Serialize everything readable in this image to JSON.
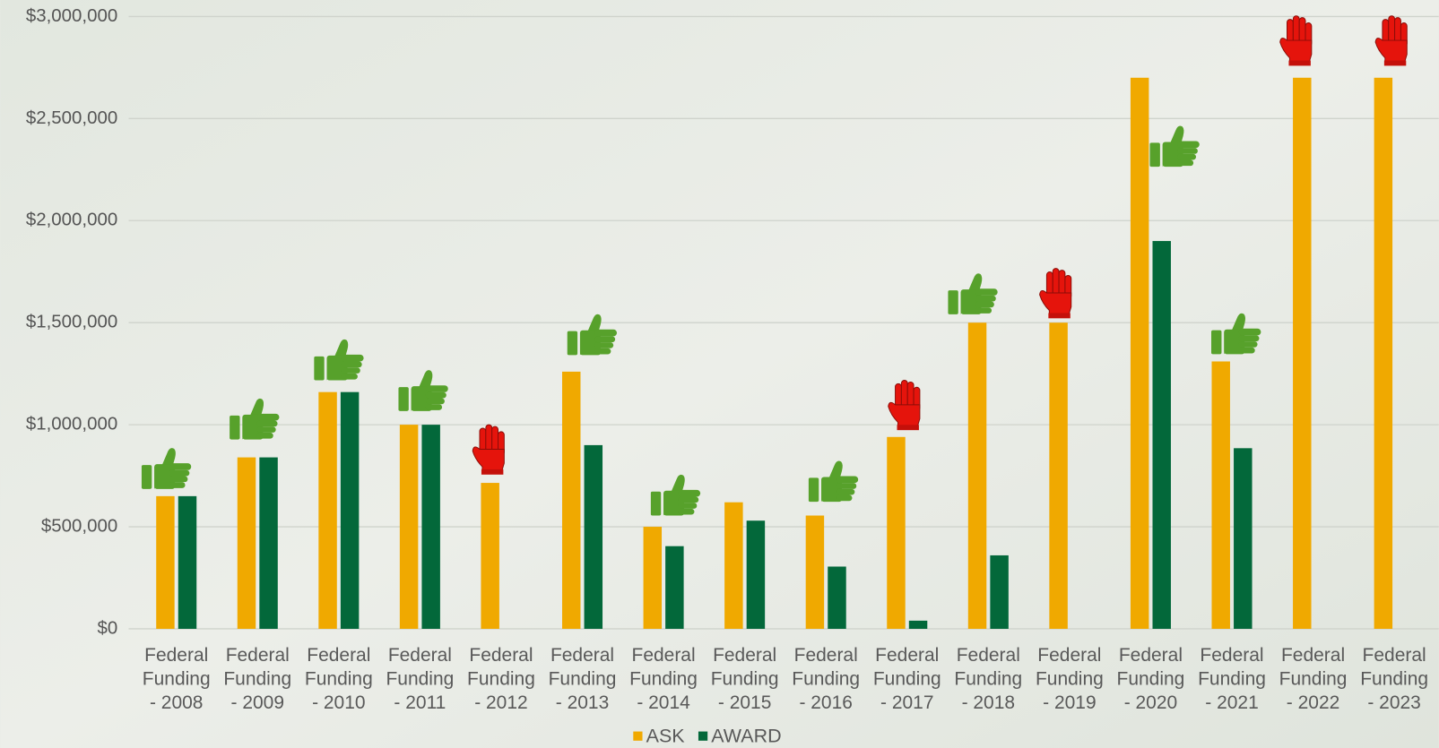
{
  "chart_data": {
    "type": "bar",
    "categories": [
      "Federal Funding - 2008",
      "Federal Funding - 2009",
      "Federal Funding - 2010",
      "Federal Funding - 2011",
      "Federal Funding - 2012",
      "Federal Funding - 2013",
      "Federal Funding - 2014",
      "Federal Funding - 2015",
      "Federal Funding - 2016",
      "Federal Funding - 2017",
      "Federal Funding - 2018",
      "Federal Funding - 2019",
      "Federal Funding - 2020",
      "Federal Funding - 2021",
      "Federal Funding - 2022",
      "Federal Funding - 2023"
    ],
    "series": [
      {
        "name": "ASK",
        "color": "#f0a900",
        "values": [
          650000,
          840000,
          1160000,
          1000000,
          715000,
          1260000,
          500000,
          620000,
          555000,
          940000,
          1500000,
          1500000,
          2700000,
          1310000,
          2700000,
          2700000
        ]
      },
      {
        "name": "AWARD",
        "color": "#03683a",
        "values": [
          650000,
          840000,
          1160000,
          1000000,
          0,
          900000,
          405000,
          530000,
          305000,
          40000,
          360000,
          0,
          1900000,
          885000,
          0,
          0
        ]
      }
    ],
    "ylim": [
      0,
      3000000
    ],
    "yticks": [
      {
        "value": 0,
        "label": "$0"
      },
      {
        "value": 500000,
        "label": "$500,000"
      },
      {
        "value": 1000000,
        "label": "$1,000,000"
      },
      {
        "value": 1500000,
        "label": "$1,500,000"
      },
      {
        "value": 2000000,
        "label": "$2,000,000"
      },
      {
        "value": 2500000,
        "label": "$2,500,000"
      },
      {
        "value": 3000000,
        "label": "$3,000,000"
      }
    ],
    "grid": true,
    "legend": "bottom"
  }
}
